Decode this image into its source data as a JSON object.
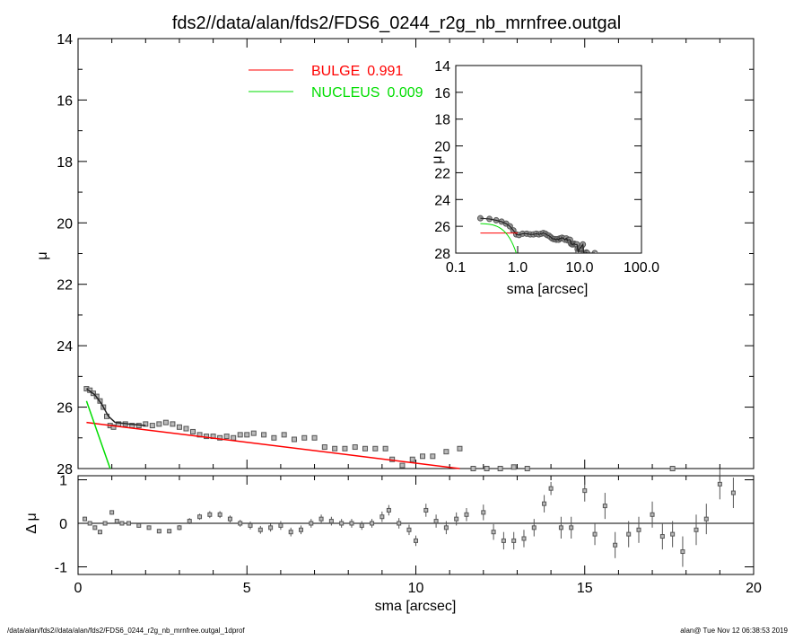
{
  "chart_data": [
    {
      "type": "scatter",
      "panel": "main",
      "title": "fds2//data/alan/fds2/FDS6_0244_r2g_nb_mrnfree.outgal",
      "xlabel": "",
      "ylabel": "μ",
      "xlim": [
        0,
        20
      ],
      "ylim": [
        28,
        14
      ],
      "yticks": [
        "14",
        "16",
        "18",
        "20",
        "22",
        "24",
        "26",
        "28"
      ],
      "legend": [
        {
          "label": "BULGE",
          "value": "0.991",
          "color": "#ff0000"
        },
        {
          "label": "NUCLEUS",
          "value": "0.009",
          "color": "#00dd00"
        }
      ],
      "data": [
        [
          0.25,
          25.4
        ],
        [
          0.35,
          25.45
        ],
        [
          0.45,
          25.55
        ],
        [
          0.55,
          25.65
        ],
        [
          0.65,
          25.8
        ],
        [
          0.75,
          26.0
        ],
        [
          0.85,
          26.3
        ],
        [
          0.95,
          26.6
        ],
        [
          1.05,
          26.65
        ],
        [
          1.2,
          26.55
        ],
        [
          1.4,
          26.55
        ],
        [
          1.6,
          26.6
        ],
        [
          1.8,
          26.6
        ],
        [
          2.0,
          26.55
        ],
        [
          2.2,
          26.6
        ],
        [
          2.4,
          26.55
        ],
        [
          2.6,
          26.5
        ],
        [
          2.8,
          26.55
        ],
        [
          3.0,
          26.65
        ],
        [
          3.2,
          26.7
        ],
        [
          3.4,
          26.8
        ],
        [
          3.6,
          26.9
        ],
        [
          3.8,
          26.95
        ],
        [
          4.0,
          26.95
        ],
        [
          4.2,
          27.0
        ],
        [
          4.4,
          26.95
        ],
        [
          4.6,
          27.0
        ],
        [
          4.8,
          26.9
        ],
        [
          5.0,
          26.9
        ],
        [
          5.2,
          26.85
        ],
        [
          5.5,
          26.9
        ],
        [
          5.8,
          27.0
        ],
        [
          6.1,
          26.9
        ],
        [
          6.4,
          27.05
        ],
        [
          6.7,
          27.0
        ],
        [
          7.0,
          27.0
        ],
        [
          7.3,
          27.3
        ],
        [
          7.6,
          27.35
        ],
        [
          7.9,
          27.35
        ],
        [
          8.2,
          27.3
        ],
        [
          8.5,
          27.35
        ],
        [
          8.8,
          27.35
        ],
        [
          9.1,
          27.35
        ],
        [
          9.3,
          27.7
        ],
        [
          9.6,
          27.9
        ],
        [
          9.9,
          27.7
        ],
        [
          10.2,
          27.6
        ],
        [
          10.5,
          27.6
        ],
        [
          10.9,
          27.45
        ],
        [
          11.3,
          27.35
        ],
        [
          11.7,
          28.0
        ],
        [
          12.1,
          28.0
        ],
        [
          12.5,
          28.0
        ],
        [
          12.9,
          27.95
        ],
        [
          13.3,
          28.0
        ],
        [
          17.6,
          28.0
        ]
      ],
      "model": [
        [
          0.25,
          25.4
        ],
        [
          0.5,
          25.6
        ],
        [
          0.7,
          25.9
        ],
        [
          0.9,
          26.3
        ],
        [
          1.1,
          26.5
        ],
        [
          1.5,
          26.55
        ],
        [
          2.0,
          26.6
        ]
      ],
      "bulge": [
        [
          0.25,
          26.5
        ],
        [
          11.3,
          28.0
        ]
      ],
      "nucleus": [
        [
          0.25,
          25.8
        ],
        [
          0.95,
          28.0
        ]
      ]
    },
    {
      "type": "scatter",
      "panel": "residual",
      "xlabel": "sma [arcsec]",
      "ylabel": "Δ μ",
      "xlim": [
        0,
        20
      ],
      "ylim": [
        -1.1,
        1.1
      ],
      "xticks": [
        "0",
        "5",
        "10",
        "15",
        "20"
      ],
      "yticks": [
        "1",
        "0",
        "-1"
      ],
      "data": [
        [
          0.2,
          0.1,
          0.05
        ],
        [
          0.35,
          0.0,
          0.05
        ],
        [
          0.5,
          -0.1,
          0.05
        ],
        [
          0.65,
          -0.2,
          0.05
        ],
        [
          0.8,
          0.0,
          0.05
        ],
        [
          1.0,
          0.25,
          0.05
        ],
        [
          1.15,
          0.05,
          0.05
        ],
        [
          1.3,
          0.0,
          0.05
        ],
        [
          1.5,
          0.0,
          0.05
        ],
        [
          1.8,
          -0.05,
          0.05
        ],
        [
          2.1,
          -0.1,
          0.05
        ],
        [
          2.4,
          -0.18,
          0.05
        ],
        [
          2.7,
          -0.18,
          0.05
        ],
        [
          3.0,
          -0.1,
          0.06
        ],
        [
          3.3,
          0.05,
          0.07
        ],
        [
          3.6,
          0.15,
          0.07
        ],
        [
          3.9,
          0.2,
          0.08
        ],
        [
          4.2,
          0.2,
          0.08
        ],
        [
          4.5,
          0.1,
          0.08
        ],
        [
          4.8,
          0.0,
          0.08
        ],
        [
          5.1,
          -0.05,
          0.09
        ],
        [
          5.4,
          -0.15,
          0.09
        ],
        [
          5.7,
          -0.1,
          0.09
        ],
        [
          6.0,
          -0.05,
          0.1
        ],
        [
          6.3,
          -0.2,
          0.1
        ],
        [
          6.6,
          -0.15,
          0.1
        ],
        [
          6.9,
          0.0,
          0.1
        ],
        [
          7.2,
          0.1,
          0.1
        ],
        [
          7.5,
          0.05,
          0.1
        ],
        [
          7.8,
          0.0,
          0.1
        ],
        [
          8.1,
          0.0,
          0.1
        ],
        [
          8.4,
          -0.05,
          0.1
        ],
        [
          8.7,
          0.0,
          0.1
        ],
        [
          9.0,
          0.15,
          0.12
        ],
        [
          9.2,
          0.3,
          0.12
        ],
        [
          9.5,
          0.0,
          0.12
        ],
        [
          9.8,
          -0.15,
          0.12
        ],
        [
          10.0,
          -0.4,
          0.12
        ],
        [
          10.3,
          0.3,
          0.15
        ],
        [
          10.6,
          0.05,
          0.15
        ],
        [
          10.9,
          -0.1,
          0.15
        ],
        [
          11.2,
          0.1,
          0.15
        ],
        [
          11.5,
          0.2,
          0.15
        ],
        [
          12.0,
          0.25,
          0.18
        ],
        [
          12.3,
          -0.2,
          0.18
        ],
        [
          12.6,
          -0.4,
          0.2
        ],
        [
          12.9,
          -0.4,
          0.2
        ],
        [
          13.2,
          -0.35,
          0.2
        ],
        [
          13.5,
          -0.1,
          0.2
        ],
        [
          13.8,
          0.45,
          0.2
        ],
        [
          14.0,
          0.8,
          0.15
        ],
        [
          14.3,
          -0.1,
          0.25
        ],
        [
          14.6,
          -0.1,
          0.25
        ],
        [
          15.0,
          0.75,
          0.25
        ],
        [
          15.3,
          -0.25,
          0.25
        ],
        [
          15.6,
          0.4,
          0.3
        ],
        [
          15.9,
          -0.5,
          0.3
        ],
        [
          16.3,
          -0.25,
          0.3
        ],
        [
          16.6,
          -0.15,
          0.3
        ],
        [
          17.0,
          0.2,
          0.3
        ],
        [
          17.3,
          -0.3,
          0.3
        ],
        [
          17.6,
          -0.25,
          0.3
        ],
        [
          17.9,
          -0.65,
          0.35
        ],
        [
          18.3,
          -0.15,
          0.35
        ],
        [
          18.6,
          0.1,
          0.35
        ],
        [
          19.0,
          0.9,
          0.35
        ],
        [
          19.4,
          0.7,
          0.35
        ]
      ]
    },
    {
      "type": "scatter",
      "panel": "inset",
      "xlabel": "sma [arcsec]",
      "ylabel": "μ",
      "xscale": "log",
      "xlim": [
        0.1,
        100
      ],
      "ylim": [
        28,
        14
      ],
      "xticks": [
        "0.1",
        "1.0",
        "10.0",
        "100.0"
      ],
      "yticks": [
        "14",
        "16",
        "18",
        "20",
        "22",
        "24",
        "26",
        "28"
      ]
    }
  ],
  "footer": {
    "left": "/data/alan/fds2//data/alan/fds2/FDS6_0244_r2g_nb_mrnfree.outgal_1dprof",
    "right": "alan@  Tue Nov 12 06:38:53 2019"
  }
}
